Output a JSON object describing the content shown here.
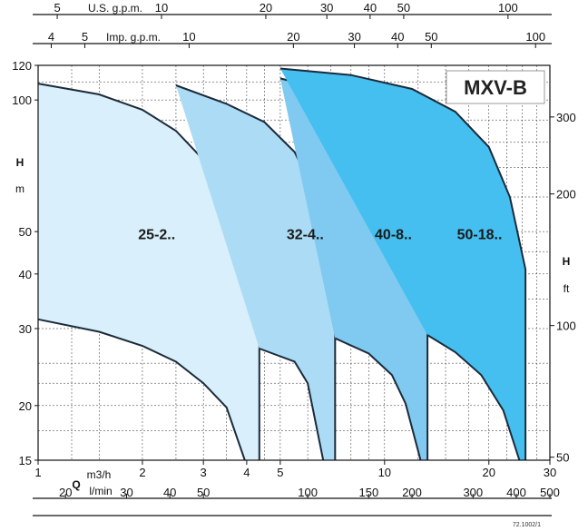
{
  "chart_data": {
    "type": "area",
    "title": "MXV-B",
    "x_scale": "log",
    "y_scale": "log",
    "x_primary": {
      "unit_line1": "m3/h",
      "unit_line2": "l/min",
      "symbol": "Q",
      "range": [
        1,
        30
      ],
      "ticks_m3h": [
        1,
        2,
        3,
        4,
        5,
        10,
        20,
        30
      ],
      "ticks_lmin": [
        20,
        30,
        40,
        50,
        100,
        150,
        200,
        300,
        400,
        500
      ]
    },
    "x_secondary": [
      {
        "unit": "U.S. g.p.m.",
        "ticks": [
          5,
          10,
          20,
          30,
          40,
          50,
          100
        ]
      },
      {
        "unit": "Imp. g.p.m.",
        "ticks": [
          4,
          5,
          10,
          20,
          30,
          40,
          50,
          100
        ]
      }
    ],
    "y_left": {
      "symbol": "H",
      "unit": "m",
      "range": [
        15,
        120
      ],
      "ticks": [
        15,
        20,
        30,
        40,
        50,
        100,
        120
      ]
    },
    "y_right": {
      "symbol": "H",
      "unit": "ft",
      "ticks": [
        50,
        100,
        200,
        300
      ]
    },
    "series": [
      {
        "name": "25-2..",
        "color": "#d9effb",
        "upper": [
          [
            1,
            109
          ],
          [
            1.5,
            103
          ],
          [
            2,
            95
          ],
          [
            2.5,
            85
          ],
          [
            3,
            73
          ],
          [
            3.5,
            60
          ],
          [
            4,
            49
          ],
          [
            4.35,
            43
          ],
          [
            4.35,
            15
          ]
        ],
        "lower": [
          [
            1,
            31.5
          ],
          [
            1.5,
            29.5
          ],
          [
            2,
            27.4
          ],
          [
            2.5,
            25.2
          ],
          [
            3,
            22.5
          ],
          [
            3.5,
            19.8
          ],
          [
            3.95,
            15
          ]
        ]
      },
      {
        "name": "32-4..",
        "color": "#acdcf5",
        "upper": [
          [
            2.5,
            108
          ],
          [
            3.5,
            98
          ],
          [
            4.5,
            89
          ],
          [
            5.5,
            76
          ],
          [
            6.5,
            58
          ],
          [
            7.2,
            44
          ],
          [
            7.2,
            15
          ]
        ],
        "lower": [
          [
            4.35,
            27
          ],
          [
            5.5,
            25.2
          ],
          [
            6,
            22.5
          ],
          [
            6.65,
            15
          ]
        ]
      },
      {
        "name": "40-8..",
        "color": "#80c9f0",
        "upper": [
          [
            5,
            112
          ],
          [
            6,
            108
          ],
          [
            8,
            98
          ],
          [
            10,
            86
          ],
          [
            12,
            70
          ],
          [
            13.3,
            55
          ],
          [
            13.3,
            15
          ]
        ],
        "lower": [
          [
            7.2,
            28.5
          ],
          [
            9,
            26.3
          ],
          [
            10.5,
            23.5
          ],
          [
            11.5,
            20.2
          ],
          [
            12.7,
            15
          ]
        ]
      },
      {
        "name": "50-18..",
        "color": "#44bfef",
        "upper": [
          [
            5,
            118
          ],
          [
            8,
            114
          ],
          [
            12,
            106
          ],
          [
            16,
            94
          ],
          [
            20,
            78
          ],
          [
            23,
            60
          ],
          [
            25.5,
            41
          ],
          [
            25.5,
            15
          ]
        ],
        "lower": [
          [
            13.3,
            29
          ],
          [
            16,
            26.5
          ],
          [
            19,
            23.5
          ],
          [
            22,
            19.5
          ],
          [
            24.5,
            15
          ]
        ]
      }
    ],
    "grid": true,
    "legend": "none",
    "footnote": "72.1002/1"
  }
}
